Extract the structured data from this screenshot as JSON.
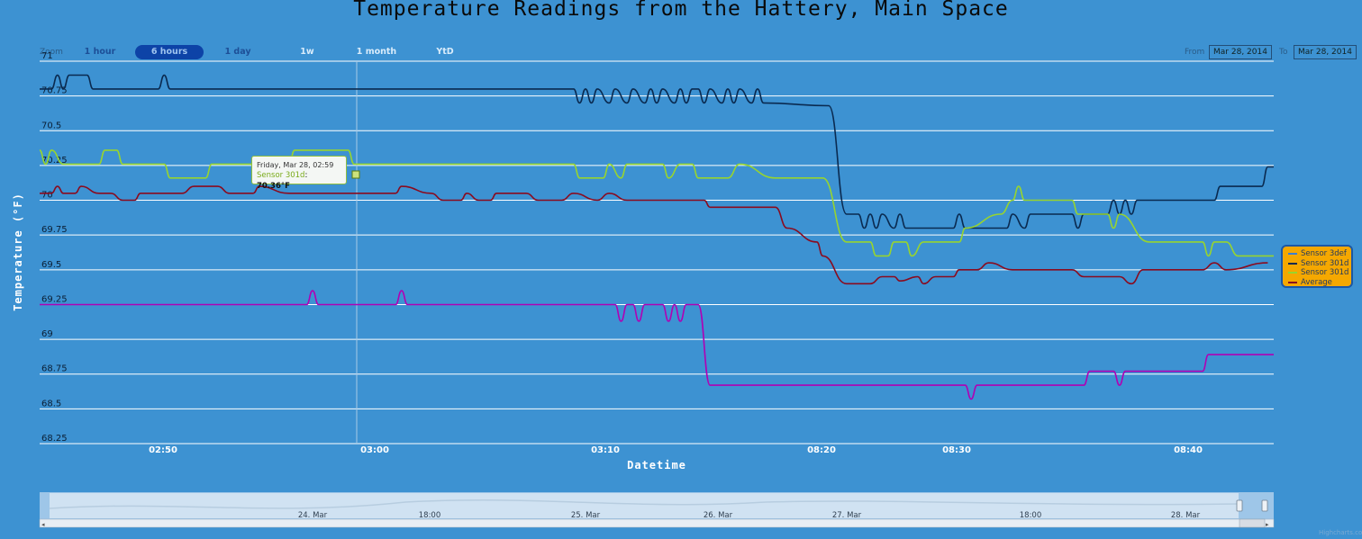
{
  "title": "Temperature Readings from the Hattery, Main Space",
  "range_selector": {
    "zoom_label": "Zoom",
    "buttons": [
      "1 hour",
      "6 hours",
      "1 day",
      "1w",
      "1 month",
      "YtD"
    ],
    "selected": "6 hours",
    "from_label": "From",
    "from_value": "Mar 28, 2014",
    "to_label": "To",
    "to_value": "Mar 28, 2014"
  },
  "tooltip": {
    "header": "Friday, Mar 28, 02:59",
    "series": "Sensor 301d",
    "value": "70.36°F"
  },
  "navigator": {
    "ticks": [
      "24. Mar",
      "18:00",
      "25. Mar",
      "26. Mar",
      "27. Mar",
      "18:00",
      "28. Mar"
    ]
  },
  "credits": "Highcharts.com",
  "chart_data": {
    "type": "line",
    "title": "Temperature Readings from the Hattery, Main Space",
    "xlabel": "Datetime",
    "ylabel": "Temperature (°F)",
    "ylim": [
      68.25,
      71
    ],
    "yticks": [
      "68.25",
      "68.5",
      "68.75",
      "69",
      "69.25",
      "69.5",
      "69.75",
      "70",
      "70.25",
      "70.5",
      "70.75",
      "71"
    ],
    "xticks": [
      "02:50",
      "03:00",
      "03:10",
      "08:20",
      "08:30",
      "08:40"
    ],
    "grid": true,
    "legend_position": "right",
    "crosshair_x": 396,
    "series": [
      {
        "name": "Sensor 3def",
        "color": "#b000b5",
        "points": [
          [
            0,
            69.25
          ],
          [
            225,
            69.25
          ],
          [
            230,
            69.35
          ],
          [
            235,
            69.25
          ],
          [
            300,
            69.25
          ],
          [
            305,
            69.35
          ],
          [
            310,
            69.25
          ],
          [
            485,
            69.25
          ],
          [
            490,
            69.13
          ],
          [
            495,
            69.25
          ],
          [
            500,
            69.25
          ],
          [
            505,
            69.13
          ],
          [
            510,
            69.25
          ],
          [
            525,
            69.25
          ],
          [
            530,
            69.13
          ],
          [
            535,
            69.25
          ],
          [
            540,
            69.13
          ],
          [
            545,
            69.25
          ],
          [
            555,
            69.25
          ],
          [
            565,
            68.67
          ],
          [
            780,
            68.67
          ],
          [
            785,
            68.57
          ],
          [
            790,
            68.67
          ],
          [
            880,
            68.67
          ],
          [
            885,
            68.77
          ],
          [
            905,
            68.77
          ],
          [
            910,
            68.67
          ],
          [
            915,
            68.77
          ],
          [
            980,
            68.77
          ],
          [
            985,
            68.89
          ],
          [
            1040,
            68.89
          ]
        ]
      },
      {
        "name": "Sensor 301d",
        "color": "#0a2a50",
        "points": [
          [
            0,
            70.8
          ],
          [
            10,
            70.8
          ],
          [
            15,
            70.9
          ],
          [
            20,
            70.8
          ],
          [
            25,
            70.9
          ],
          [
            40,
            70.9
          ],
          [
            45,
            70.8
          ],
          [
            100,
            70.8
          ],
          [
            105,
            70.9
          ],
          [
            110,
            70.8
          ],
          [
            450,
            70.8
          ],
          [
            455,
            70.7
          ],
          [
            460,
            70.8
          ],
          [
            465,
            70.7
          ],
          [
            470,
            70.8
          ],
          [
            480,
            70.7
          ],
          [
            485,
            70.8
          ],
          [
            495,
            70.7
          ],
          [
            500,
            70.8
          ],
          [
            510,
            70.7
          ],
          [
            515,
            70.8
          ],
          [
            520,
            70.7
          ],
          [
            525,
            70.8
          ],
          [
            535,
            70.7
          ],
          [
            540,
            70.8
          ],
          [
            545,
            70.7
          ],
          [
            550,
            70.8
          ],
          [
            555,
            70.8
          ],
          [
            560,
            70.7
          ],
          [
            565,
            70.8
          ],
          [
            575,
            70.7
          ],
          [
            580,
            70.8
          ],
          [
            585,
            70.7
          ],
          [
            590,
            70.8
          ],
          [
            600,
            70.7
          ],
          [
            605,
            70.8
          ],
          [
            610,
            70.7
          ],
          [
            665,
            70.68
          ],
          [
            680,
            69.9
          ],
          [
            690,
            69.9
          ],
          [
            695,
            69.8
          ],
          [
            700,
            69.9
          ],
          [
            705,
            69.8
          ],
          [
            710,
            69.9
          ],
          [
            720,
            69.8
          ],
          [
            725,
            69.9
          ],
          [
            730,
            69.8
          ],
          [
            770,
            69.8
          ],
          [
            775,
            69.9
          ],
          [
            780,
            69.8
          ],
          [
            815,
            69.8
          ],
          [
            820,
            69.9
          ],
          [
            830,
            69.8
          ],
          [
            835,
            69.9
          ],
          [
            870,
            69.9
          ],
          [
            875,
            69.8
          ],
          [
            880,
            69.9
          ],
          [
            900,
            69.9
          ],
          [
            905,
            70.0
          ],
          [
            910,
            69.9
          ],
          [
            915,
            70.0
          ],
          [
            920,
            69.9
          ],
          [
            925,
            70.0
          ],
          [
            990,
            70.0
          ],
          [
            995,
            70.1
          ],
          [
            1030,
            70.1
          ],
          [
            1035,
            70.24
          ],
          [
            1040,
            70.24
          ]
        ]
      },
      {
        "name": "Sensor 301d",
        "color": "#97d42f",
        "points": [
          [
            0,
            70.36
          ],
          [
            5,
            70.26
          ],
          [
            10,
            70.36
          ],
          [
            20,
            70.26
          ],
          [
            50,
            70.26
          ],
          [
            55,
            70.36
          ],
          [
            65,
            70.36
          ],
          [
            70,
            70.26
          ],
          [
            105,
            70.26
          ],
          [
            110,
            70.16
          ],
          [
            140,
            70.16
          ],
          [
            145,
            70.26
          ],
          [
            210,
            70.26
          ],
          [
            215,
            70.36
          ],
          [
            260,
            70.36
          ],
          [
            265,
            70.26
          ],
          [
            450,
            70.26
          ],
          [
            455,
            70.16
          ],
          [
            475,
            70.16
          ],
          [
            480,
            70.26
          ],
          [
            490,
            70.16
          ],
          [
            495,
            70.26
          ],
          [
            525,
            70.26
          ],
          [
            530,
            70.16
          ],
          [
            540,
            70.26
          ],
          [
            550,
            70.26
          ],
          [
            555,
            70.16
          ],
          [
            580,
            70.16
          ],
          [
            590,
            70.26
          ],
          [
            620,
            70.16
          ],
          [
            660,
            70.16
          ],
          [
            680,
            69.7
          ],
          [
            700,
            69.7
          ],
          [
            705,
            69.6
          ],
          [
            715,
            69.6
          ],
          [
            720,
            69.7
          ],
          [
            730,
            69.7
          ],
          [
            735,
            69.6
          ],
          [
            745,
            69.7
          ],
          [
            775,
            69.7
          ],
          [
            780,
            69.8
          ],
          [
            810,
            69.9
          ],
          [
            820,
            70.0
          ],
          [
            825,
            70.1
          ],
          [
            830,
            70.0
          ],
          [
            870,
            70.0
          ],
          [
            875,
            69.9
          ],
          [
            900,
            69.9
          ],
          [
            905,
            69.8
          ],
          [
            910,
            69.9
          ],
          [
            935,
            69.7
          ],
          [
            980,
            69.7
          ],
          [
            985,
            69.6
          ],
          [
            990,
            69.7
          ],
          [
            1000,
            69.7
          ],
          [
            1010,
            69.6
          ],
          [
            1040,
            69.6
          ]
        ]
      },
      {
        "name": "Average",
        "color": "#8a0b1f",
        "points": [
          [
            0,
            70.05
          ],
          [
            10,
            70.05
          ],
          [
            15,
            70.1
          ],
          [
            20,
            70.05
          ],
          [
            30,
            70.05
          ],
          [
            35,
            70.1
          ],
          [
            50,
            70.05
          ],
          [
            60,
            70.05
          ],
          [
            70,
            70.0
          ],
          [
            80,
            70.0
          ],
          [
            85,
            70.05
          ],
          [
            120,
            70.05
          ],
          [
            130,
            70.1
          ],
          [
            150,
            70.1
          ],
          [
            160,
            70.05
          ],
          [
            180,
            70.05
          ],
          [
            185,
            70.1
          ],
          [
            210,
            70.05
          ],
          [
            300,
            70.05
          ],
          [
            305,
            70.1
          ],
          [
            330,
            70.05
          ],
          [
            340,
            70.0
          ],
          [
            355,
            70.0
          ],
          [
            360,
            70.05
          ],
          [
            370,
            70.0
          ],
          [
            380,
            70.0
          ],
          [
            385,
            70.05
          ],
          [
            410,
            70.05
          ],
          [
            420,
            70.0
          ],
          [
            440,
            70.0
          ],
          [
            450,
            70.05
          ],
          [
            470,
            70.0
          ],
          [
            480,
            70.05
          ],
          [
            495,
            70.0
          ],
          [
            560,
            70.0
          ],
          [
            565,
            69.95
          ],
          [
            620,
            69.95
          ],
          [
            630,
            69.8
          ],
          [
            655,
            69.7
          ],
          [
            660,
            69.6
          ],
          [
            680,
            69.4
          ],
          [
            700,
            69.4
          ],
          [
            710,
            69.45
          ],
          [
            720,
            69.45
          ],
          [
            725,
            69.42
          ],
          [
            740,
            69.45
          ],
          [
            745,
            69.4
          ],
          [
            755,
            69.45
          ],
          [
            770,
            69.45
          ],
          [
            775,
            69.5
          ],
          [
            790,
            69.5
          ],
          [
            800,
            69.55
          ],
          [
            820,
            69.5
          ],
          [
            870,
            69.5
          ],
          [
            880,
            69.45
          ],
          [
            890,
            69.45
          ],
          [
            910,
            69.45
          ],
          [
            920,
            69.4
          ],
          [
            930,
            69.5
          ],
          [
            960,
            69.5
          ],
          [
            980,
            69.5
          ],
          [
            990,
            69.55
          ],
          [
            1000,
            69.5
          ],
          [
            1035,
            69.55
          ]
        ]
      }
    ]
  }
}
